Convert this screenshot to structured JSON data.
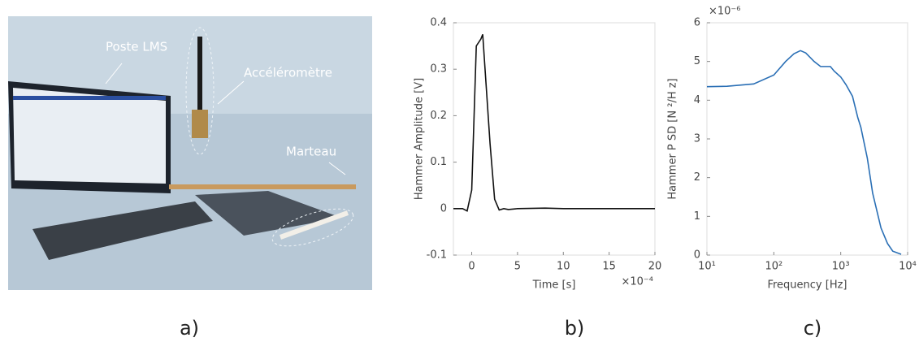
{
  "photo": {
    "labels": [
      "Poste LMS",
      "Accéléromètre",
      "Marteau"
    ],
    "caption": "a)"
  },
  "chart_data": [
    {
      "type": "line",
      "caption": "b)",
      "xlabel": "Time  [s]",
      "ylabel": "Hammer  Amplitude  [V]",
      "x_multiplier": "×10⁻⁴",
      "color": "#111111",
      "x": [
        -2,
        -1,
        -0.5,
        0,
        0.5,
        1,
        1.2,
        2,
        2.5,
        3,
        3.5,
        4,
        5,
        8,
        10,
        15,
        20
      ],
      "values": [
        0,
        0,
        -0.005,
        0.04,
        0.35,
        0.365,
        0.375,
        0.14,
        0.02,
        -0.003,
        0,
        -0.002,
        0,
        0.001,
        0,
        0,
        0
      ],
      "xlim": [
        -2,
        20
      ],
      "xticks": [
        0,
        5,
        10,
        15,
        20
      ],
      "ylim": [
        -0.1,
        0.4
      ],
      "yticks": [
        -0.1,
        0,
        0.1,
        0.2,
        0.3,
        0.4
      ]
    },
    {
      "type": "line",
      "caption": "c)",
      "xlabel": "Frequency  [Hz]",
      "ylabel": "Hammer P SD  [N ²/H z]",
      "y_multiplier": "×10⁻⁶",
      "color": "#2a6fb5",
      "xscale": "log",
      "x": [
        10,
        20,
        50,
        100,
        150,
        200,
        250,
        300,
        400,
        500,
        700,
        800,
        1000,
        1200,
        1500,
        1800,
        2000,
        2500,
        3000,
        4000,
        5000,
        6000,
        8000
      ],
      "values": [
        4.35,
        4.36,
        4.42,
        4.65,
        5.0,
        5.2,
        5.28,
        5.22,
        5.0,
        4.87,
        4.87,
        4.75,
        4.6,
        4.4,
        4.1,
        3.55,
        3.3,
        2.5,
        1.6,
        0.7,
        0.3,
        0.1,
        0.02
      ],
      "xlim": [
        10,
        10000
      ],
      "xticks": [
        {
          "value": 10,
          "label": "10¹"
        },
        {
          "value": 100,
          "label": "10²"
        },
        {
          "value": 1000,
          "label": "10³"
        },
        {
          "value": 10000,
          "label": "10⁴"
        }
      ],
      "ylim": [
        0,
        6
      ],
      "yticks": [
        0,
        1,
        2,
        3,
        4,
        5,
        6
      ]
    }
  ]
}
